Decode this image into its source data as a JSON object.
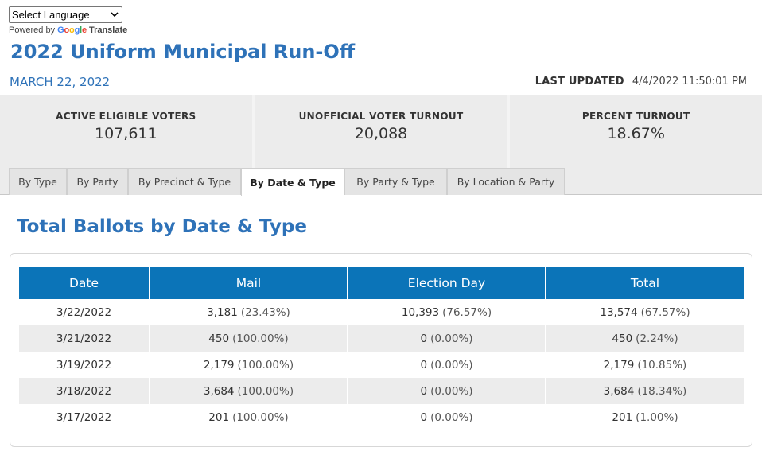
{
  "language_select": {
    "value": "Select Language"
  },
  "google_translate": {
    "powered_by": "Powered by",
    "logo": "Google",
    "translate": "Translate"
  },
  "header": {
    "title": "2022 Uniform Municipal Run-Off",
    "election_date": "MARCH 22, 2022",
    "last_updated_label": "LAST UPDATED",
    "last_updated_value": "4/4/2022 11:50:01 PM"
  },
  "stats": [
    {
      "label": "ACTIVE ELIGIBLE VOTERS",
      "value": "107,611"
    },
    {
      "label": "UNOFFICIAL VOTER TURNOUT",
      "value": "20,088"
    },
    {
      "label": "PERCENT TURNOUT",
      "value": "18.67%"
    }
  ],
  "tabs": [
    {
      "label": "By Type",
      "active": false
    },
    {
      "label": "By Party",
      "active": false
    },
    {
      "label": "By Precinct & Type",
      "active": false
    },
    {
      "label": "By Date & Type",
      "active": true
    },
    {
      "label": "By Party & Type",
      "active": false
    },
    {
      "label": "By Location & Party",
      "active": false
    }
  ],
  "section_title": "Total Ballots by Date & Type",
  "table": {
    "headers": [
      "Date",
      "Mail",
      "Election Day",
      "Total"
    ],
    "rows": [
      {
        "date": "3/22/2022",
        "mail": "3,181",
        "mail_pct": "(23.43%)",
        "eday": "10,393",
        "eday_pct": "(76.57%)",
        "total": "13,574",
        "total_pct": "(67.57%)"
      },
      {
        "date": "3/21/2022",
        "mail": "450",
        "mail_pct": "(100.00%)",
        "eday": "0",
        "eday_pct": "(0.00%)",
        "total": "450",
        "total_pct": "(2.24%)"
      },
      {
        "date": "3/19/2022",
        "mail": "2,179",
        "mail_pct": "(100.00%)",
        "eday": "0",
        "eday_pct": "(0.00%)",
        "total": "2,179",
        "total_pct": "(10.85%)"
      },
      {
        "date": "3/18/2022",
        "mail": "3,684",
        "mail_pct": "(100.00%)",
        "eday": "0",
        "eday_pct": "(0.00%)",
        "total": "3,684",
        "total_pct": "(18.34%)"
      },
      {
        "date": "3/17/2022",
        "mail": "201",
        "mail_pct": "(100.00%)",
        "eday": "0",
        "eday_pct": "(0.00%)",
        "total": "201",
        "total_pct": "(1.00%)"
      }
    ]
  },
  "colors": {
    "accent": "#2e72b8",
    "table_header": "#0b74b8",
    "stripe": "#ececec"
  },
  "icons": {
    "select_chevron": "chevron-down-icon"
  }
}
